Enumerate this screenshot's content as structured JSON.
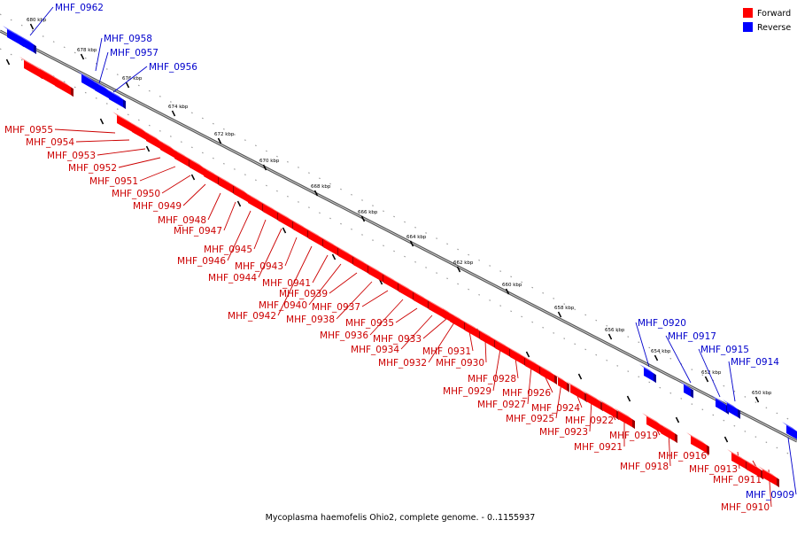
{
  "caption": "Mycoplasma haemofelis Ohio2, complete genome. - 0..1155937",
  "legend": [
    {
      "label": "Forward",
      "color": "#ff0000"
    },
    {
      "label": "Reverse",
      "color": "#0000ff"
    }
  ],
  "colors": {
    "forward": "#ff0000",
    "reverse": "#0000ff",
    "forward_label": "#cc0000",
    "reverse_label": "#0000cc",
    "axis": "#666666"
  },
  "ticks": [
    "680 kbp",
    "678 kbp",
    "676 kbp",
    "674 kbp",
    "672 kbp",
    "670 kbp",
    "668 kbp",
    "666 kbp",
    "664 kbp",
    "662 kbp",
    "660 kbp",
    "658 kbp",
    "656 kbp",
    "654 kbp",
    "652 kbp",
    "650 kbp"
  ],
  "genes": [
    {
      "name": "MHF_0962",
      "strand": "reverse"
    },
    {
      "name": "MHF_0958",
      "strand": "reverse"
    },
    {
      "name": "MHF_0957",
      "strand": "reverse"
    },
    {
      "name": "MHF_0956",
      "strand": "reverse"
    },
    {
      "name": "MHF_0955",
      "strand": "forward"
    },
    {
      "name": "MHF_0954",
      "strand": "forward"
    },
    {
      "name": "MHF_0953",
      "strand": "forward"
    },
    {
      "name": "MHF_0952",
      "strand": "forward"
    },
    {
      "name": "MHF_0951",
      "strand": "forward"
    },
    {
      "name": "MHF_0950",
      "strand": "forward"
    },
    {
      "name": "MHF_0949",
      "strand": "forward"
    },
    {
      "name": "MHF_0948",
      "strand": "forward"
    },
    {
      "name": "MHF_0947",
      "strand": "forward"
    },
    {
      "name": "MHF_0946",
      "strand": "forward"
    },
    {
      "name": "MHF_0945",
      "strand": "forward"
    },
    {
      "name": "MHF_0944",
      "strand": "forward"
    },
    {
      "name": "MHF_0943",
      "strand": "forward"
    },
    {
      "name": "MHF_0942",
      "strand": "forward"
    },
    {
      "name": "MHF_0941",
      "strand": "forward"
    },
    {
      "name": "MHF_0940",
      "strand": "forward"
    },
    {
      "name": "MHF_0939",
      "strand": "forward"
    },
    {
      "name": "MHF_0938",
      "strand": "forward"
    },
    {
      "name": "MHF_0937",
      "strand": "forward"
    },
    {
      "name": "MHF_0936",
      "strand": "forward"
    },
    {
      "name": "MHF_0935",
      "strand": "forward"
    },
    {
      "name": "MHF_0934",
      "strand": "forward"
    },
    {
      "name": "MHF_0933",
      "strand": "forward"
    },
    {
      "name": "MHF_0932",
      "strand": "forward"
    },
    {
      "name": "MHF_0931",
      "strand": "forward"
    },
    {
      "name": "MHF_0930",
      "strand": "forward"
    },
    {
      "name": "MHF_0929",
      "strand": "forward"
    },
    {
      "name": "MHF_0928",
      "strand": "forward"
    },
    {
      "name": "MHF_0927",
      "strand": "forward"
    },
    {
      "name": "MHF_0926",
      "strand": "forward"
    },
    {
      "name": "MHF_0925",
      "strand": "forward"
    },
    {
      "name": "MHF_0924",
      "strand": "forward"
    },
    {
      "name": "MHF_0923",
      "strand": "forward"
    },
    {
      "name": "MHF_0922",
      "strand": "forward"
    },
    {
      "name": "MHF_0921",
      "strand": "forward"
    },
    {
      "name": "MHF_0920",
      "strand": "reverse"
    },
    {
      "name": "MHF_0919",
      "strand": "forward"
    },
    {
      "name": "MHF_0918",
      "strand": "forward"
    },
    {
      "name": "MHF_0917",
      "strand": "reverse"
    },
    {
      "name": "MHF_0916",
      "strand": "forward"
    },
    {
      "name": "MHF_0915",
      "strand": "reverse"
    },
    {
      "name": "MHF_0914",
      "strand": "reverse"
    },
    {
      "name": "MHF_0913",
      "strand": "forward"
    },
    {
      "name": "MHF_0911",
      "strand": "forward"
    },
    {
      "name": "MHF_0910",
      "strand": "forward"
    },
    {
      "name": "MHF_0909",
      "strand": "reverse"
    }
  ]
}
